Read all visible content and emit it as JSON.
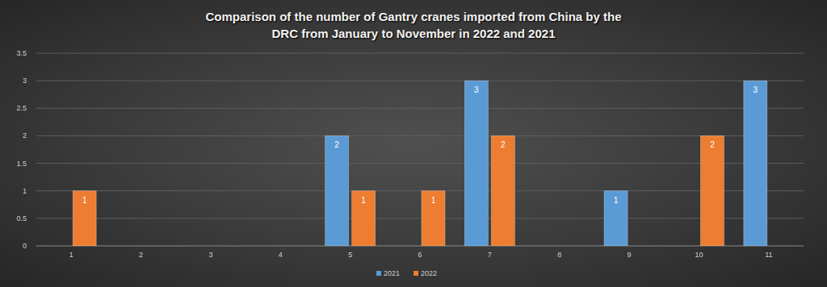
{
  "chart_data": {
    "type": "bar",
    "title": "Comparison of the number of Gantry cranes imported from China by the DRC from January to November in 2022 and 2021",
    "categories": [
      "1",
      "2",
      "3",
      "4",
      "5",
      "6",
      "7",
      "8",
      "9",
      "10",
      "11"
    ],
    "series": [
      {
        "name": "2021",
        "color": "#5b9bd5",
        "values": [
          null,
          null,
          null,
          null,
          2,
          null,
          3,
          null,
          1,
          null,
          3
        ]
      },
      {
        "name": "2022",
        "color": "#ed7d31",
        "values": [
          1,
          null,
          null,
          null,
          1,
          1,
          2,
          null,
          null,
          2,
          null
        ]
      }
    ],
    "ylim": [
      0,
      3.5
    ],
    "yticks": [
      0,
      0.5,
      1,
      1.5,
      2,
      2.5,
      3,
      3.5
    ],
    "grid": true,
    "legend": "bottom",
    "data_labels": true
  }
}
